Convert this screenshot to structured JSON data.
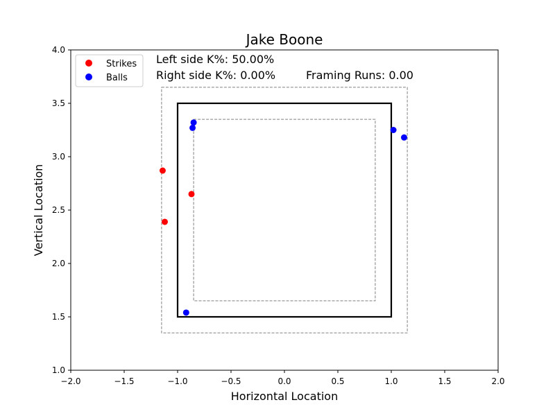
{
  "chart_data": {
    "type": "scatter",
    "title": "Jake Boone",
    "xlabel": "Horizontal Location",
    "ylabel": "Vertical Location",
    "xlim": [
      -2.0,
      2.0
    ],
    "ylim": [
      1.0,
      4.0
    ],
    "x_ticks": [
      "−2.0",
      "−1.5",
      "−1.0",
      "−0.5",
      "0.0",
      "0.5",
      "1.0",
      "1.5",
      "2.0"
    ],
    "x_tick_values": [
      -2.0,
      -1.5,
      -1.0,
      -0.5,
      0.0,
      0.5,
      1.0,
      1.5,
      2.0
    ],
    "y_ticks": [
      "1.0",
      "1.5",
      "2.0",
      "2.5",
      "3.0",
      "3.5",
      "4.0"
    ],
    "y_tick_values": [
      1.0,
      1.5,
      2.0,
      2.5,
      3.0,
      3.5,
      4.0
    ],
    "grid": false,
    "legend_placement": "top-left",
    "annotations": {
      "left_k": "Left side K%: 50.00%",
      "right_k": "Right side K%: 0.00%",
      "framing": "Framing Runs: 0.00"
    },
    "strike_zone": {
      "x": [
        -1.0,
        1.0
      ],
      "y": [
        1.5,
        3.5
      ],
      "color": "#000000"
    },
    "outer_zone": {
      "x": [
        -1.15,
        1.15
      ],
      "y": [
        1.35,
        3.65
      ],
      "color": "#808080"
    },
    "inner_zone": {
      "x": [
        -0.85,
        0.85
      ],
      "y": [
        1.65,
        3.35
      ],
      "color": "#808080"
    },
    "series": [
      {
        "name": "Strikes",
        "color": "#ff0000",
        "points": [
          {
            "x": -1.14,
            "y": 2.87
          },
          {
            "x": -0.87,
            "y": 2.65
          },
          {
            "x": -1.12,
            "y": 2.39
          }
        ]
      },
      {
        "name": "Balls",
        "color": "#0000ff",
        "points": [
          {
            "x": -0.85,
            "y": 3.32
          },
          {
            "x": -0.86,
            "y": 3.27
          },
          {
            "x": 1.02,
            "y": 3.25
          },
          {
            "x": 1.12,
            "y": 3.18
          },
          {
            "x": -0.92,
            "y": 1.54
          }
        ]
      }
    ]
  }
}
